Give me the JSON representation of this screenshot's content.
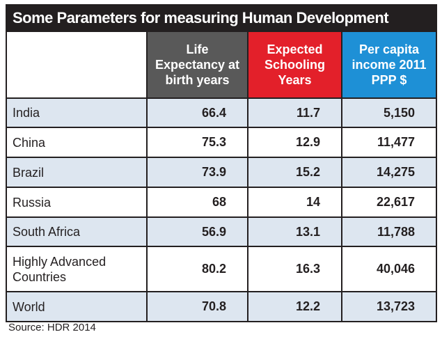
{
  "header": {
    "title": "Some Parameters for measuring Human Development"
  },
  "table": {
    "columns": [
      "Life Expectancy at birth years",
      "Expected Schooling Years",
      "Per capita income 2011 PPP $"
    ],
    "rows": [
      [
        "India",
        "66.4",
        "11.7",
        "5,150"
      ],
      [
        "China",
        "75.3",
        "12.9",
        "11,477"
      ],
      [
        "Brazil",
        "73.9",
        "15.2",
        "14,275"
      ],
      [
        "Russia",
        "68",
        "14",
        "22,617"
      ],
      [
        "South Africa",
        "56.9",
        "13.1",
        "11,788"
      ],
      [
        "Highly Advanced Countries",
        "80.2",
        "16.3",
        "40,046"
      ],
      [
        "World",
        "70.8",
        "12.2",
        "13,723"
      ]
    ]
  },
  "footer": {
    "source": "Source: HDR 2014"
  }
}
